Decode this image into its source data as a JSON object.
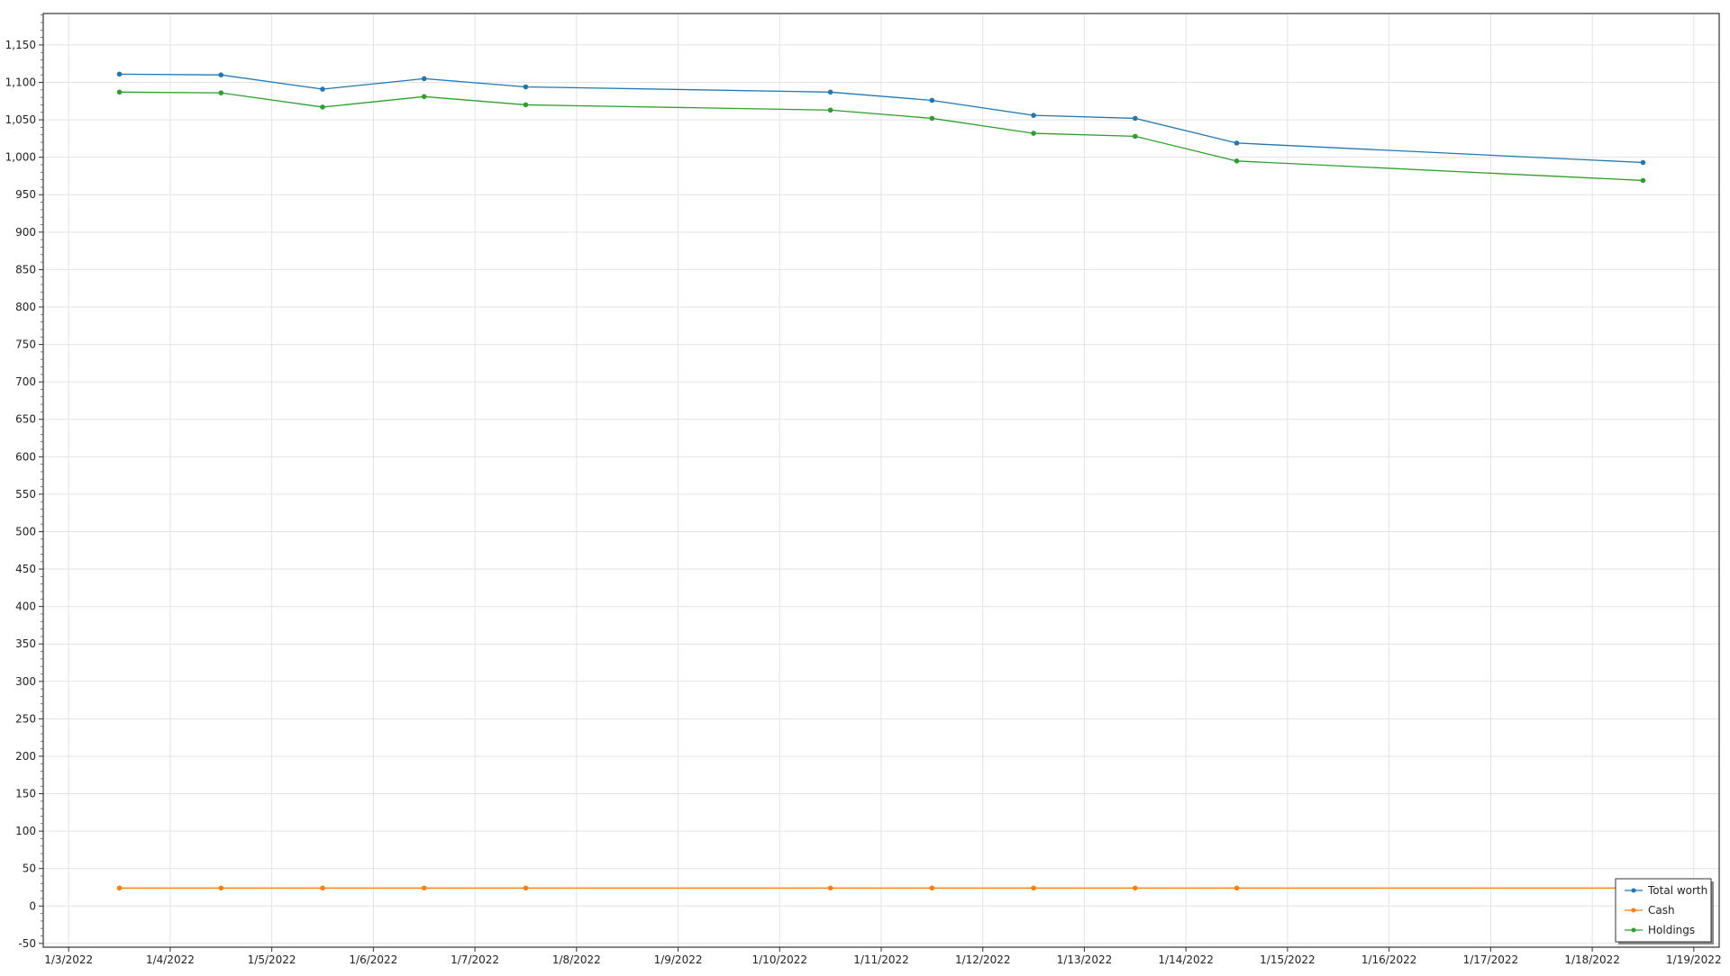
{
  "chart_data": {
    "type": "line",
    "title": "",
    "xlabel": "",
    "ylabel": "",
    "x_ticks": [
      "1/3/2022",
      "1/4/2022",
      "1/5/2022",
      "1/6/2022",
      "1/7/2022",
      "1/8/2022",
      "1/9/2022",
      "1/10/2022",
      "1/11/2022",
      "1/12/2022",
      "1/13/2022",
      "1/14/2022",
      "1/15/2022",
      "1/16/2022",
      "1/17/2022",
      "1/18/2022",
      "1/19/2022"
    ],
    "y_ticks": [
      "-50",
      "0",
      "50",
      "100",
      "150",
      "200",
      "250",
      "300",
      "350",
      "400",
      "450",
      "500",
      "550",
      "600",
      "650",
      "700",
      "750",
      "800",
      "850",
      "900",
      "950",
      "1,000",
      "1,050",
      "1,100",
      "1,150"
    ],
    "ylim": [
      -55,
      1192
    ],
    "xlim": [
      "2022-01-02T18:00",
      "2022-01-19T06:00"
    ],
    "grid": true,
    "legend_position": "bottom-right",
    "x": [
      "2022-01-03T12:00",
      "2022-01-04T12:00",
      "2022-01-05T12:00",
      "2022-01-06T12:00",
      "2022-01-07T12:00",
      "2022-01-10T12:00",
      "2022-01-11T12:00",
      "2022-01-12T12:00",
      "2022-01-13T12:00",
      "2022-01-14T12:00",
      "2022-01-18T12:00"
    ],
    "series": [
      {
        "name": "Total worth",
        "color": "#1f77b4",
        "values": [
          1111,
          1110,
          1091,
          1105,
          1094,
          1087,
          1076,
          1056,
          1052,
          1019,
          993
        ]
      },
      {
        "name": "Cash",
        "color": "#ff7f0e",
        "values": [
          24,
          24,
          24,
          24,
          24,
          24,
          24,
          24,
          24,
          24,
          24
        ]
      },
      {
        "name": "Holdings",
        "color": "#2ca02c",
        "values": [
          1087,
          1086,
          1067,
          1081,
          1070,
          1063,
          1052,
          1032,
          1028,
          995,
          969
        ]
      }
    ]
  }
}
